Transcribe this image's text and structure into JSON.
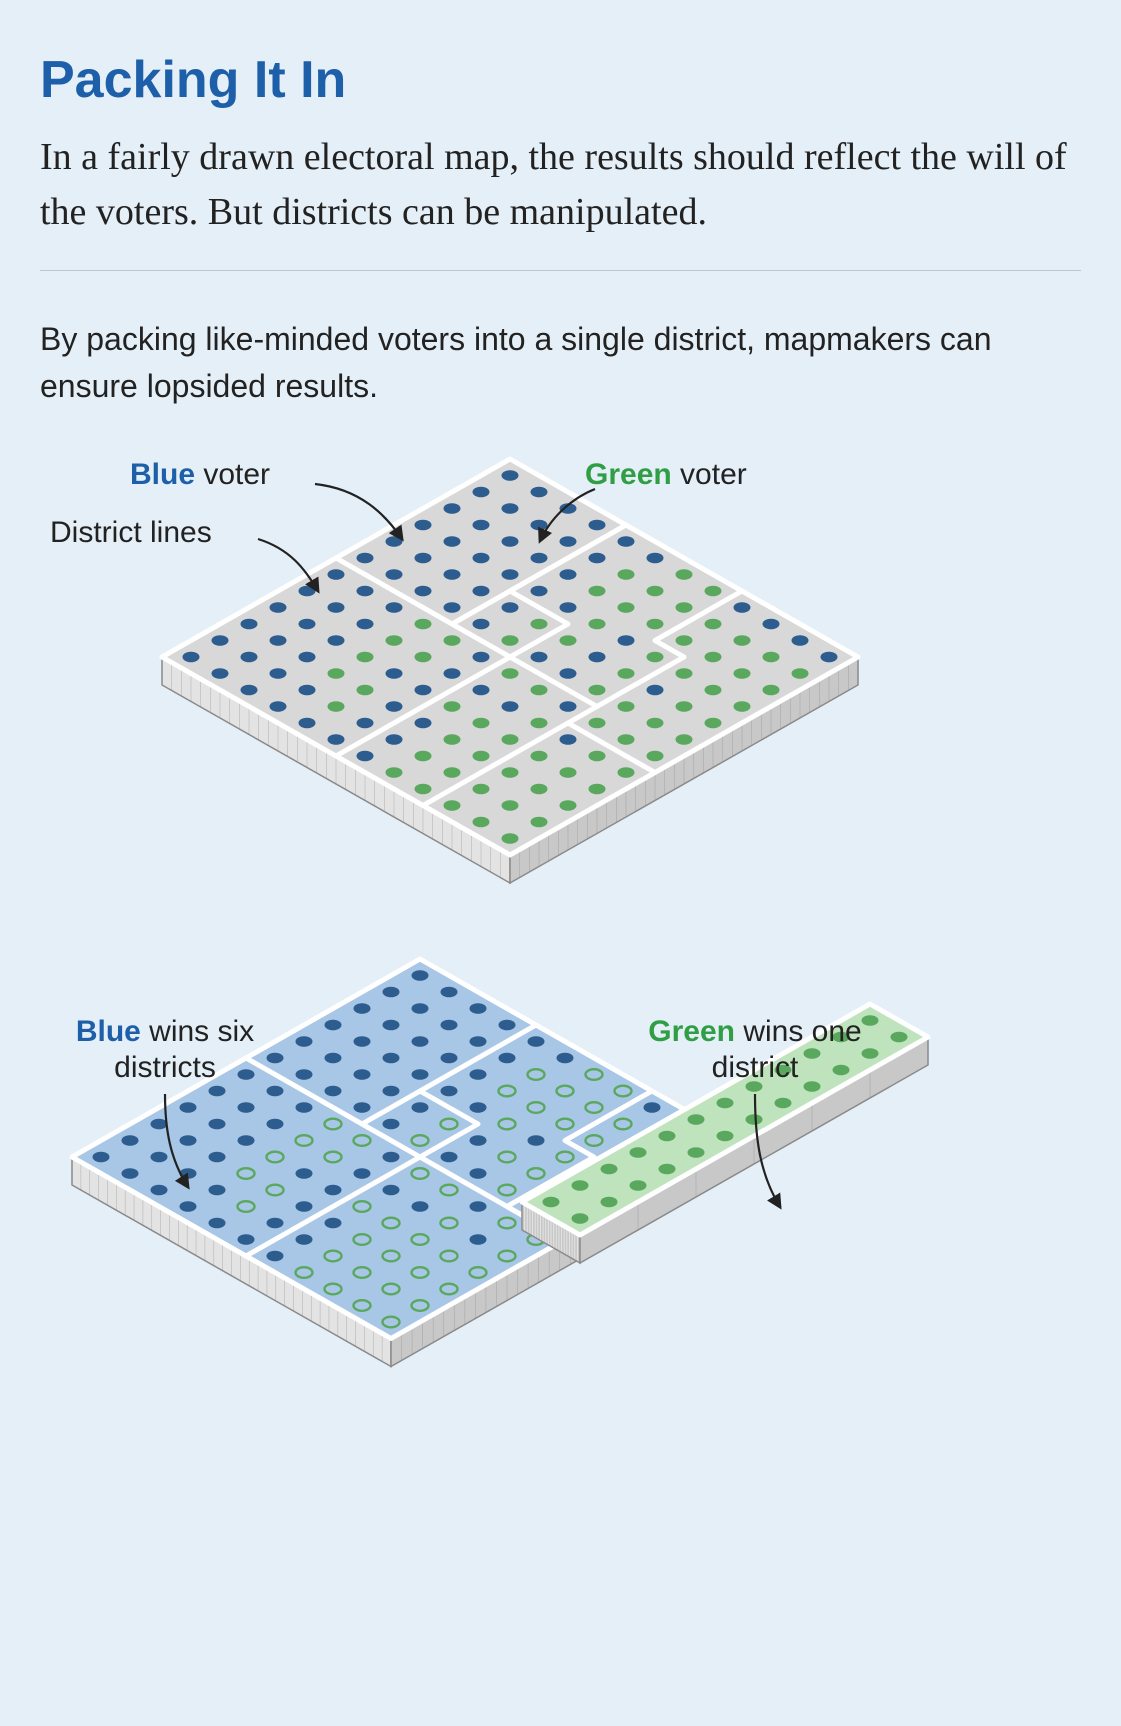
{
  "title": "Packing It In",
  "subtitle": "In a fairly drawn electoral map, the results should reflect the will of the voters. But districts can be manipulated.",
  "caption": "By packing like-minded voters into a single district, mapmakers can ensure lopsided results.",
  "palette": {
    "background": "#e5eff7",
    "title_color": "#1d5fa8",
    "text_color": "#222222",
    "divider_color": "#b9c8d6",
    "blue_voter": "#2d5d8f",
    "green_voter": "#5aa85e",
    "slab_top_grey": "#d8d8d8",
    "slab_top_blue": "#a8c6e6",
    "slab_top_green": "#bfe3bd",
    "slab_side_light": "#e3e3e3",
    "slab_side_dark": "#c8c8c8",
    "outline": "#8a8a8a",
    "district_line": "#ffffff",
    "green_ring": "#5aa85e"
  },
  "typography": {
    "title_fontsize": 52,
    "subtitle_fontsize": 38,
    "caption_fontsize": 32,
    "label_fontsize": 30
  },
  "labels": {
    "blue_voter_prefix": "Blue",
    "blue_voter_suffix": " voter",
    "green_voter_prefix": "Green",
    "green_voter_suffix": " voter",
    "district_lines": "District lines",
    "blue_wins_prefix": "Blue",
    "blue_wins_suffix": " wins six districts",
    "green_wins_prefix": "Green",
    "green_wins_suffix": " wins one district"
  },
  "top_board": {
    "type": "isometric-grid",
    "grid_size": 12,
    "surface_color": "#d8d8d8",
    "tile_step_u": 30,
    "tile_step_v": 17,
    "dot_radius": 8.5,
    "district_line_color": "#ffffff",
    "district_line_width": 5,
    "voter_colors": {
      "b": "#2d5d8f",
      "g": "#5aa85e"
    },
    "voter_grid": [
      "bbbbbbggbbbb",
      "bbbbbggggggg",
      "bbbbbggggggg",
      "bbbbbbgbgggg",
      "bbbbbggbgbgg",
      "bbbbbgbbgggg",
      "bbbggbggbggg",
      "bbbggbbbgbgg",
      "bbbgbbgggggg",
      "bbbggbbggggg",
      "bbbbgbbggggg",
      "bbbbbbbggggg"
    ],
    "district_boundaries": [
      [
        [
          0,
          0
        ],
        [
          12,
          0
        ],
        [
          12,
          12
        ],
        [
          0,
          12
        ],
        [
          0,
          0
        ]
      ],
      [
        [
          4,
          0
        ],
        [
          4,
          6
        ]
      ],
      [
        [
          8,
          0
        ],
        [
          8,
          3
        ],
        [
          9,
          3
        ],
        [
          9,
          6
        ]
      ],
      [
        [
          0,
          6
        ],
        [
          6,
          6
        ],
        [
          6,
          12
        ]
      ],
      [
        [
          6,
          6
        ],
        [
          9,
          6
        ],
        [
          9,
          7
        ],
        [
          12,
          7
        ]
      ],
      [
        [
          4,
          6
        ],
        [
          4,
          0
        ]
      ],
      [
        [
          6,
          6
        ],
        [
          6,
          4
        ],
        [
          4,
          4
        ]
      ],
      [
        [
          9,
          7
        ],
        [
          9,
          12
        ]
      ]
    ]
  },
  "bottom_blue_board": {
    "type": "isometric-grid",
    "grid_cols": 11,
    "grid_rows": 12,
    "surface_color": "#a8c6e6",
    "dot_radius": 8.5,
    "voter_style": {
      "b": "fill",
      "g": "ring"
    },
    "voter_colors": {
      "b": "#2d5d8f",
      "g": "#5aa85e"
    },
    "voter_grid": [
      "bbbbbbggbbb",
      "bbbbbgggggg",
      "bbbbbgggggg",
      "bbbbbbgbggg",
      "bbbbbgbggbg",
      "bbbbbgbbggg",
      "bbbggbggbgg",
      "bbbggbbbgbg",
      "bbbgbbggggg",
      "bbbggbbgggg",
      "bbbbgbbgggg",
      "bbbbbbbgggg"
    ],
    "district_boundaries": [
      [
        [
          0,
          0
        ],
        [
          11,
          0
        ],
        [
          11,
          12
        ],
        [
          0,
          12
        ],
        [
          0,
          0
        ]
      ],
      [
        [
          4,
          0
        ],
        [
          4,
          6
        ]
      ],
      [
        [
          8,
          0
        ],
        [
          8,
          3
        ],
        [
          9,
          3
        ],
        [
          9,
          6
        ],
        [
          11,
          6
        ]
      ],
      [
        [
          0,
          6
        ],
        [
          11,
          6
        ]
      ],
      [
        [
          6,
          6
        ],
        [
          6,
          12
        ]
      ],
      [
        [
          4,
          4
        ],
        [
          6,
          4
        ],
        [
          6,
          6
        ]
      ]
    ]
  },
  "bottom_green_strip": {
    "type": "isometric-strip",
    "rows": 12,
    "cols": 2,
    "surface_color": "#bfe3bd",
    "dot_color": "#5aa85e",
    "dot_radius": 8.5
  }
}
